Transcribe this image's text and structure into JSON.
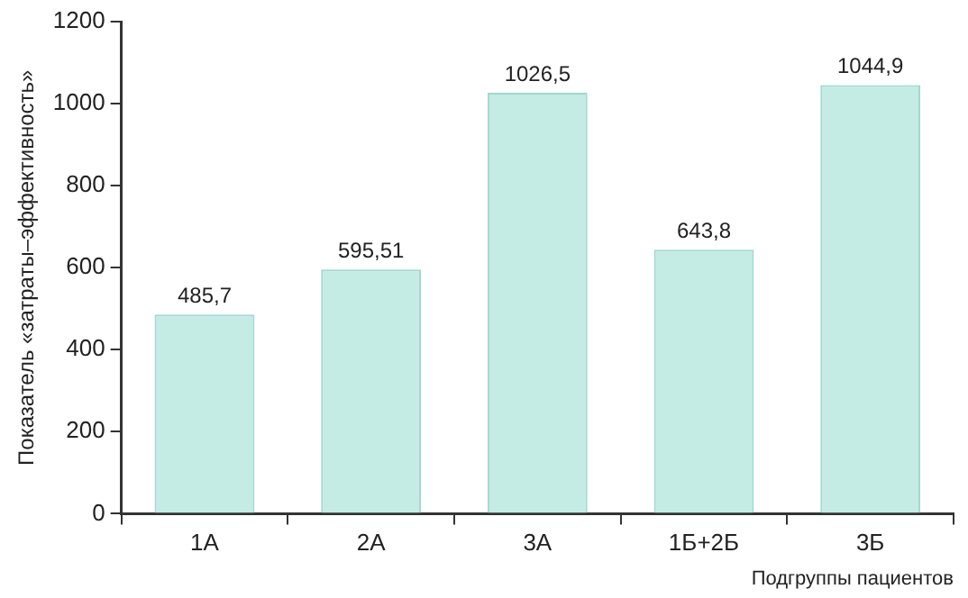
{
  "chart_data": {
    "type": "bar",
    "xlabel": "Подгруппы пациентов",
    "ylabel": "Показатель «затраты–эффективность»",
    "categories": [
      "1А",
      "2А",
      "3А",
      "1Б+2Б",
      "3Б"
    ],
    "values": [
      485.7,
      595.51,
      1026.5,
      643.8,
      1044.9
    ],
    "value_labels": [
      "485,7",
      "595,51",
      "1026,5",
      "643,8",
      "1044,9"
    ],
    "color": "#c4ebe4",
    "ylim": [
      0,
      1200
    ],
    "yticks": [
      0,
      200,
      400,
      600,
      800,
      1000,
      1200
    ],
    "grid": false,
    "legend": false
  }
}
